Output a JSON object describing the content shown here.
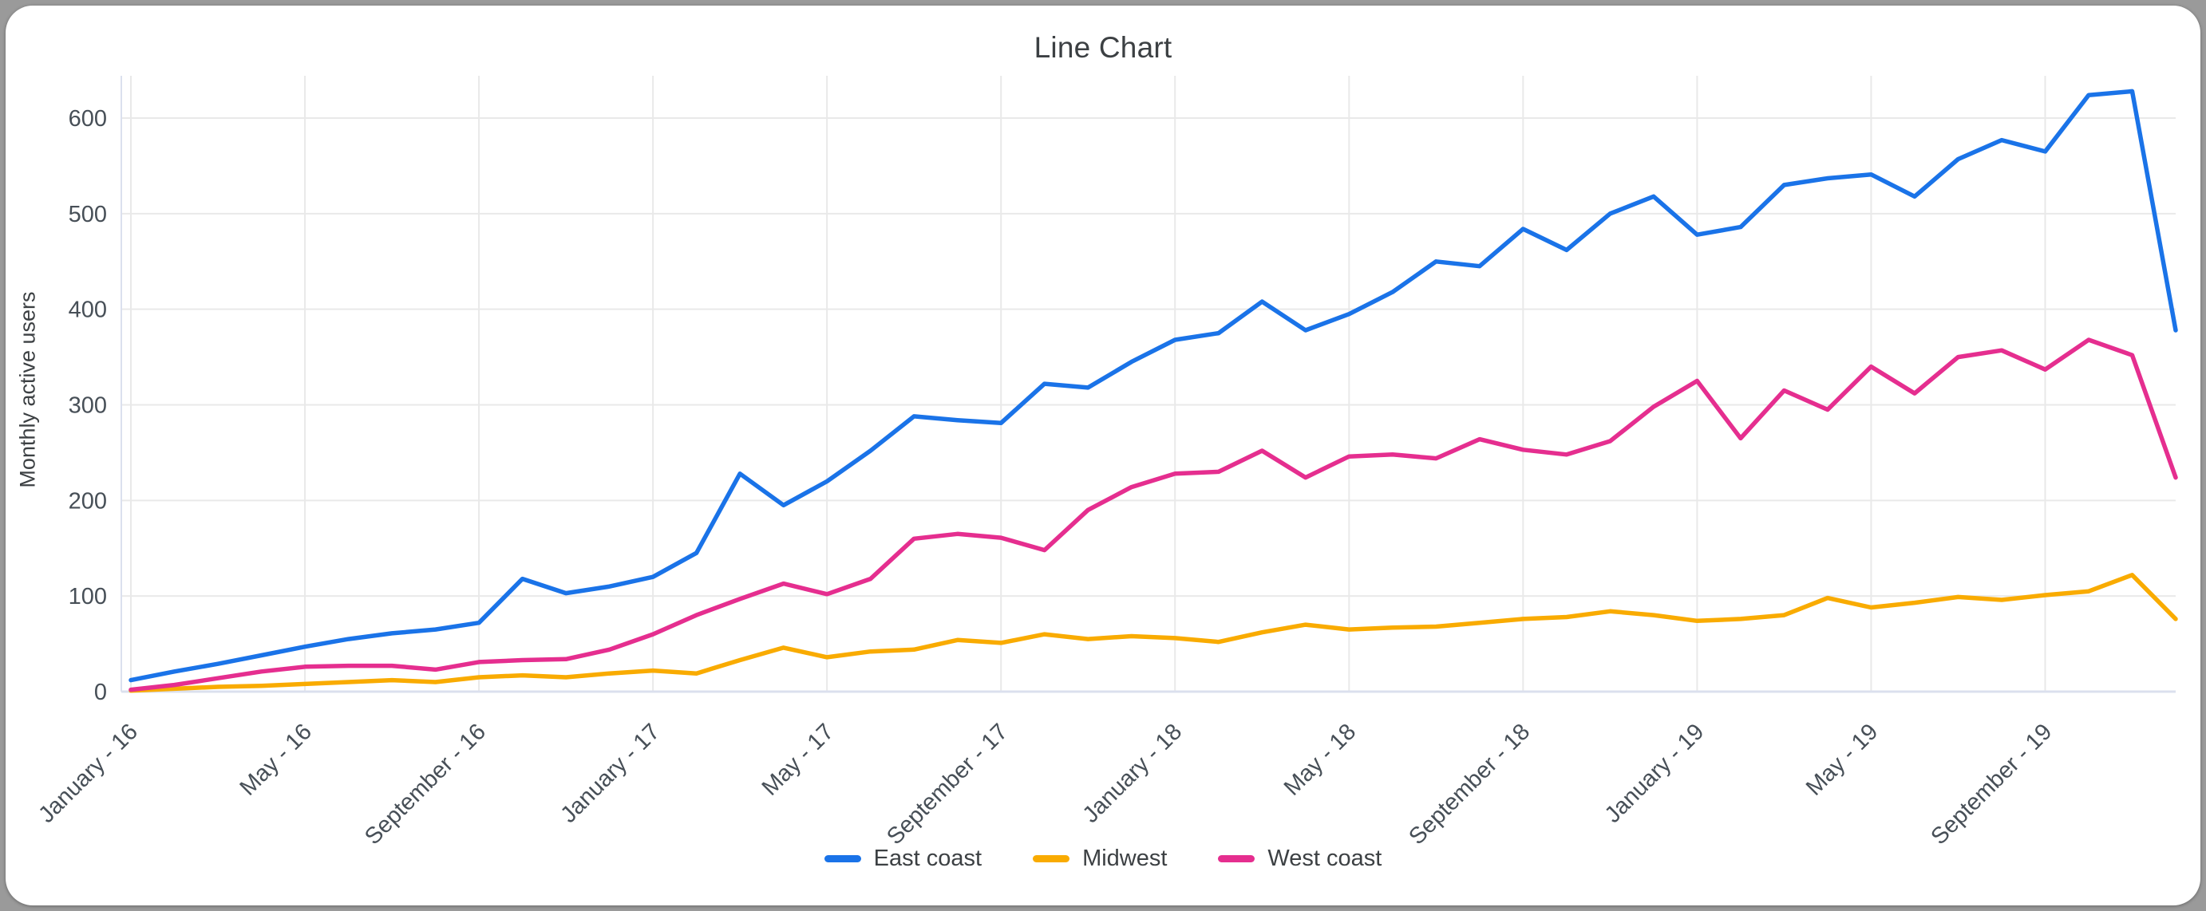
{
  "chart": {
    "title": "Line Chart",
    "y_axis_title": "Monthly active users"
  },
  "chart_data": {
    "type": "line",
    "title": "Line Chart",
    "ylabel": "Monthly active users",
    "xlabel": "",
    "ylim": [
      0,
      650
    ],
    "y_ticks": [
      0,
      100,
      200,
      300,
      400,
      500,
      600
    ],
    "grid": true,
    "legend_position": "bottom",
    "points_per_series": 48,
    "x_tick_interval": 4,
    "x_tick_labels": [
      "January - 16",
      "May - 16",
      "September - 16",
      "January - 17",
      "May - 17",
      "September - 17",
      "January - 18",
      "May - 18",
      "September - 18",
      "January - 19",
      "May - 19",
      "September - 19"
    ],
    "series": [
      {
        "name": "East coast",
        "color": "#1a73e8",
        "values": [
          12,
          21,
          29,
          38,
          47,
          55,
          61,
          65,
          72,
          118,
          103,
          110,
          120,
          145,
          228,
          195,
          220,
          252,
          288,
          284,
          281,
          322,
          318,
          345,
          368,
          375,
          408,
          378,
          395,
          418,
          450,
          445,
          484,
          462,
          500,
          518,
          478,
          486,
          530,
          537,
          541,
          518,
          557,
          577,
          565,
          624,
          628,
          378
        ]
      },
      {
        "name": "Midwest",
        "color": "#f9ab00",
        "values": [
          1,
          3,
          5,
          6,
          8,
          10,
          12,
          10,
          15,
          17,
          15,
          19,
          22,
          19,
          33,
          46,
          36,
          42,
          44,
          54,
          51,
          60,
          55,
          58,
          56,
          52,
          62,
          70,
          65,
          67,
          68,
          72,
          76,
          78,
          84,
          80,
          74,
          76,
          80,
          98,
          88,
          93,
          99,
          96,
          101,
          105,
          122,
          76
        ]
      },
      {
        "name": "West coast",
        "color": "#e52e8f",
        "values": [
          2,
          7,
          14,
          21,
          26,
          27,
          27,
          23,
          31,
          33,
          34,
          44,
          60,
          80,
          97,
          113,
          102,
          118,
          160,
          165,
          161,
          148,
          190,
          214,
          228,
          230,
          252,
          224,
          246,
          248,
          244,
          264,
          253,
          248,
          262,
          298,
          325,
          265,
          315,
          295,
          340,
          312,
          350,
          357,
          337,
          368,
          352,
          224
        ]
      }
    ],
    "axis_colors": {
      "grid_line": "#e9e9e9",
      "axis_line": "#dbe0ee",
      "tick_label": "#474f57"
    }
  }
}
